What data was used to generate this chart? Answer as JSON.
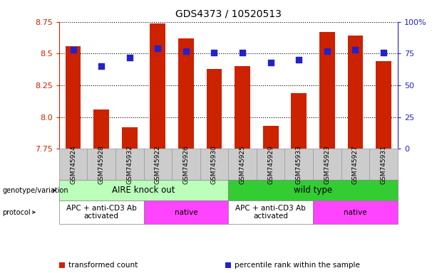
{
  "title": "GDS4373 / 10520513",
  "samples": [
    "GSM745924",
    "GSM745928",
    "GSM745932",
    "GSM745922",
    "GSM745926",
    "GSM745930",
    "GSM745925",
    "GSM745929",
    "GSM745933",
    "GSM745923",
    "GSM745927",
    "GSM745931"
  ],
  "bar_values": [
    8.56,
    8.06,
    7.92,
    8.74,
    8.62,
    8.38,
    8.4,
    7.93,
    8.19,
    8.67,
    8.64,
    8.44
  ],
  "dot_values": [
    78,
    65,
    72,
    79,
    77,
    76,
    76,
    68,
    70,
    77,
    78,
    76
  ],
  "ylim_left": [
    7.75,
    8.75
  ],
  "ylim_right": [
    0,
    100
  ],
  "yticks_left": [
    7.75,
    8.0,
    8.25,
    8.5,
    8.75
  ],
  "yticks_right": [
    0,
    25,
    50,
    75,
    100
  ],
  "ytick_labels_right": [
    "0",
    "25",
    "50",
    "75",
    "100%"
  ],
  "bar_color": "#cc2200",
  "dot_color": "#2222cc",
  "dot_size": 35,
  "bar_width": 0.55,
  "genotype_groups": [
    {
      "label": "AIRE knock out",
      "start": 0,
      "end": 6,
      "color": "#bbffbb"
    },
    {
      "label": "wild type",
      "start": 6,
      "end": 12,
      "color": "#33cc33"
    }
  ],
  "protocol_groups": [
    {
      "label": "APC + anti-CD3 Ab\nactivated",
      "start": 0,
      "end": 3,
      "color": "#ffffff"
    },
    {
      "label": "native",
      "start": 3,
      "end": 6,
      "color": "#ff44ff"
    },
    {
      "label": "APC + anti-CD3 Ab\nactivated",
      "start": 6,
      "end": 9,
      "color": "#ffffff"
    },
    {
      "label": "native",
      "start": 9,
      "end": 12,
      "color": "#ff44ff"
    }
  ],
  "legend_items": [
    {
      "label": "transformed count",
      "color": "#cc2200"
    },
    {
      "label": "percentile rank within the sample",
      "color": "#2222cc"
    }
  ],
  "left_axis_color": "#cc2200",
  "right_axis_color": "#2222cc",
  "background_color": "#ffffff",
  "tick_bg_color": "#cccccc",
  "tick_border_color": "#999999"
}
